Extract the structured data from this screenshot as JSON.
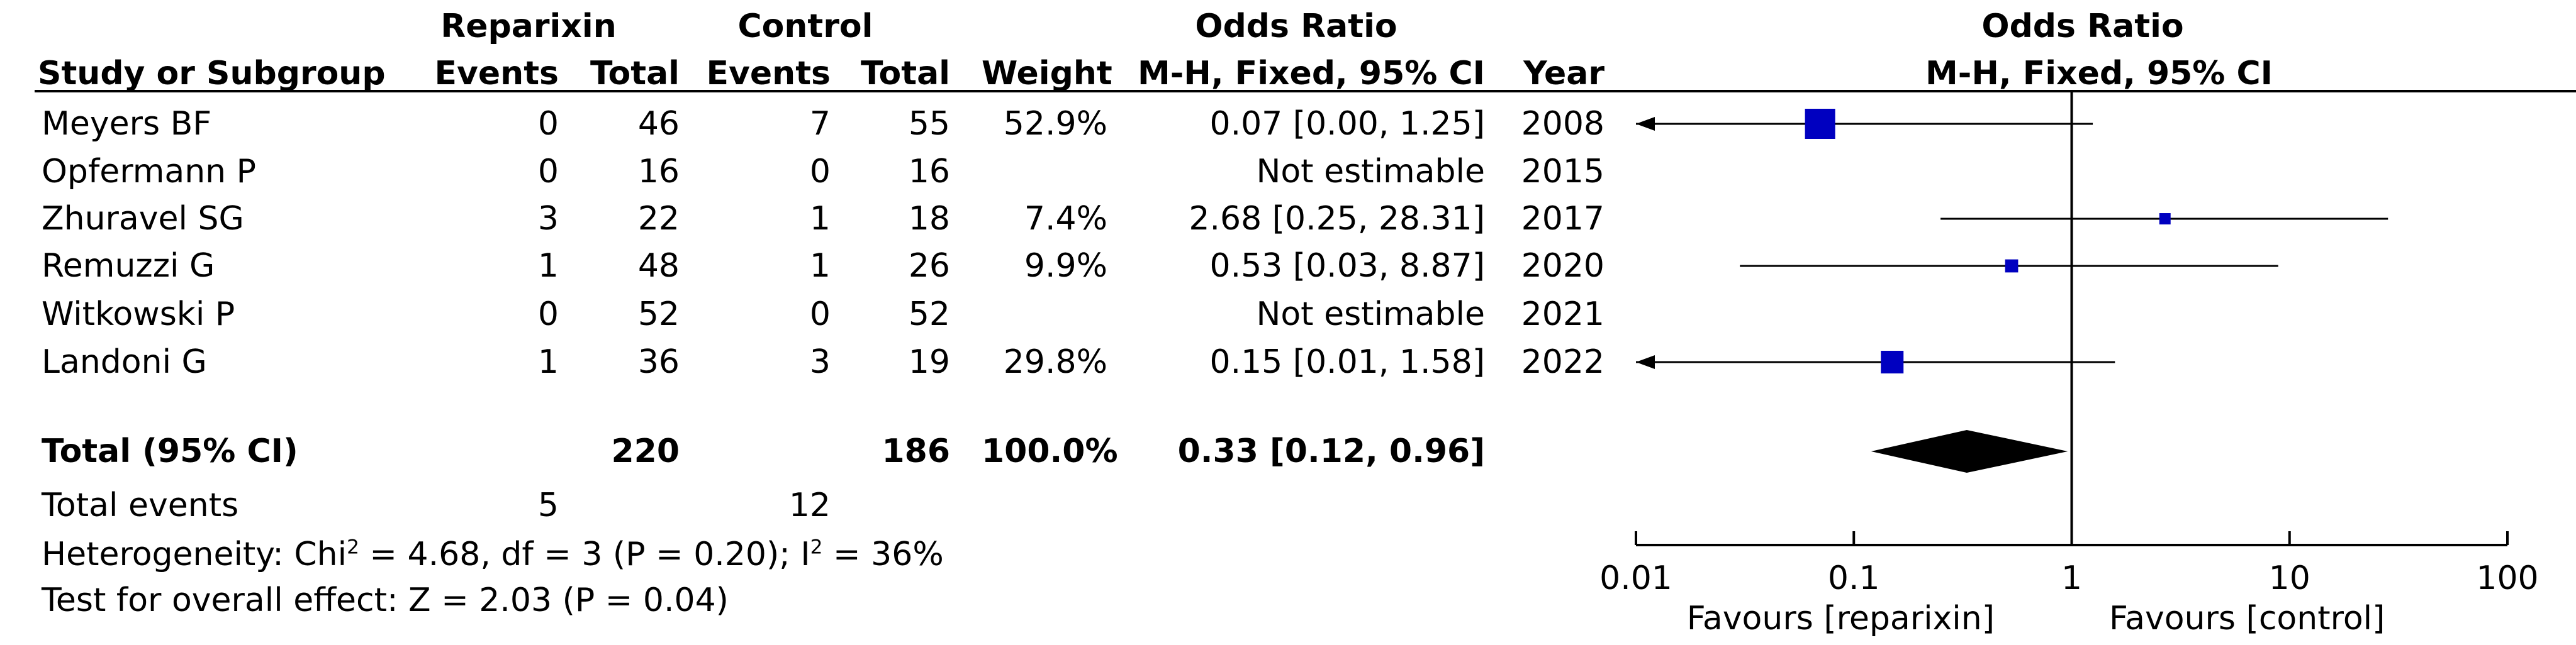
{
  "headers": {
    "group1": "Reparixin",
    "group2": "Control",
    "or_top": "Odds Ratio",
    "or_method": "M-H, Fixed, 95% CI",
    "plot_top": "Odds Ratio",
    "plot_method": "M-H, Fixed, 95% CI",
    "study": "Study or Subgroup",
    "events1": "Events",
    "total1": "Total",
    "events2": "Events",
    "total2": "Total",
    "weight": "Weight",
    "year": "Year"
  },
  "studies": [
    {
      "name": "Meyers BF",
      "e1": "0",
      "n1": "46",
      "e2": "7",
      "n2": "55",
      "weight": "52.9%",
      "or_text": "0.07 [0.00, 1.25]",
      "year": "2008"
    },
    {
      "name": "Opfermann P",
      "e1": "0",
      "n1": "16",
      "e2": "0",
      "n2": "16",
      "weight": "",
      "or_text": "Not estimable",
      "year": "2015"
    },
    {
      "name": "Zhuravel SG",
      "e1": "3",
      "n1": "22",
      "e2": "1",
      "n2": "18",
      "weight": "7.4%",
      "or_text": "2.68 [0.25, 28.31]",
      "year": "2017"
    },
    {
      "name": "Remuzzi G",
      "e1": "1",
      "n1": "48",
      "e2": "1",
      "n2": "26",
      "weight": "9.9%",
      "or_text": "0.53 [0.03, 8.87]",
      "year": "2020"
    },
    {
      "name": "Witkowski P",
      "e1": "0",
      "n1": "52",
      "e2": "0",
      "n2": "52",
      "weight": "",
      "or_text": "Not estimable",
      "year": "2021"
    },
    {
      "name": "Landoni G",
      "e1": "1",
      "n1": "36",
      "e2": "3",
      "n2": "19",
      "weight": "29.8%",
      "or_text": "0.15 [0.01, 1.58]",
      "year": "2022"
    }
  ],
  "total": {
    "label": "Total (95% CI)",
    "n1": "220",
    "n2": "186",
    "weight": "100.0%",
    "or_text": "0.33 [0.12, 0.96]"
  },
  "events": {
    "label": "Total events",
    "e1": "5",
    "e2": "12"
  },
  "stats": {
    "heterogeneity_a": "Heterogeneity: Chi",
    "heterogeneity_b": " = 4.68, df = 3 (P = 0.20); I",
    "heterogeneity_c": " = 36%",
    "sup": "2",
    "overall": "Test for overall effect: Z = 2.03 (P = 0.04)"
  },
  "axis": {
    "ticks": [
      "0.01",
      "0.1",
      "1",
      "10",
      "100"
    ],
    "favours_left": "Favours [reparixin]",
    "favours_right": "Favours [control]"
  },
  "colors": {
    "marker": "#0000c0",
    "diamond": "#000000",
    "line": "#000000"
  },
  "chart_data": {
    "type": "forest",
    "scale": "log",
    "xlim": [
      0.01,
      100
    ],
    "ticks": [
      0.01,
      0.1,
      1,
      10,
      100
    ],
    "null_value": 1,
    "studies": [
      {
        "name": "Meyers BF",
        "or": 0.07,
        "lo": 0.0,
        "hi": 1.25,
        "weight": 52.9
      },
      {
        "name": "Opfermann P",
        "or": null,
        "lo": null,
        "hi": null,
        "weight": null
      },
      {
        "name": "Zhuravel SG",
        "or": 2.68,
        "lo": 0.25,
        "hi": 28.31,
        "weight": 7.4
      },
      {
        "name": "Remuzzi G",
        "or": 0.53,
        "lo": 0.03,
        "hi": 8.87,
        "weight": 9.9
      },
      {
        "name": "Witkowski P",
        "or": null,
        "lo": null,
        "hi": null,
        "weight": null
      },
      {
        "name": "Landoni G",
        "or": 0.15,
        "lo": 0.01,
        "hi": 1.58,
        "weight": 29.8
      }
    ],
    "pooled": {
      "or": 0.33,
      "lo": 0.12,
      "hi": 0.96
    }
  }
}
